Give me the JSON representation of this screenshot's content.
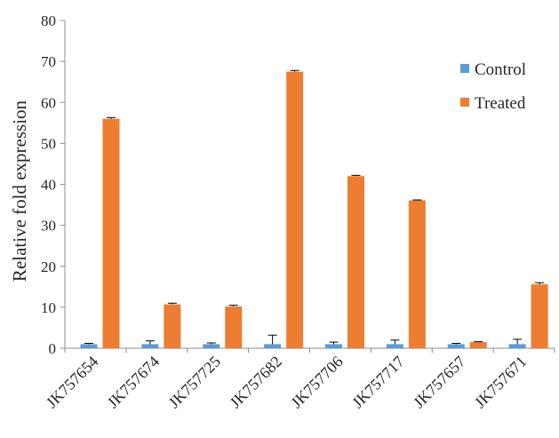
{
  "chart_data": {
    "type": "bar",
    "categories": [
      "JK757654",
      "JK757674",
      "JK757725",
      "JK757682",
      "JK757706",
      "JK757717",
      "JK757657",
      "JK757671"
    ],
    "series": [
      {
        "name": "Control",
        "color": "#5b9bd5",
        "values": [
          1,
          1,
          1,
          1,
          1,
          1,
          1,
          1
        ],
        "errors": [
          0.2,
          0.8,
          0.3,
          2.2,
          0.5,
          1.0,
          0.2,
          1.2
        ]
      },
      {
        "name": "Treated",
        "color": "#ed7d31",
        "values": [
          56,
          10.7,
          10.2,
          67.5,
          42,
          36.1,
          1.5,
          15.6
        ],
        "errors": [
          0.3,
          0.3,
          0.3,
          0.3,
          0.2,
          0.1,
          0.1,
          0.4
        ]
      }
    ],
    "title": "",
    "xlabel": "",
    "ylabel": "Relative fold expression",
    "ylim": [
      0,
      80
    ],
    "yticks": [
      0,
      10,
      20,
      30,
      40,
      50,
      60,
      70,
      80
    ],
    "grid": false,
    "legend_position": "top-right"
  }
}
